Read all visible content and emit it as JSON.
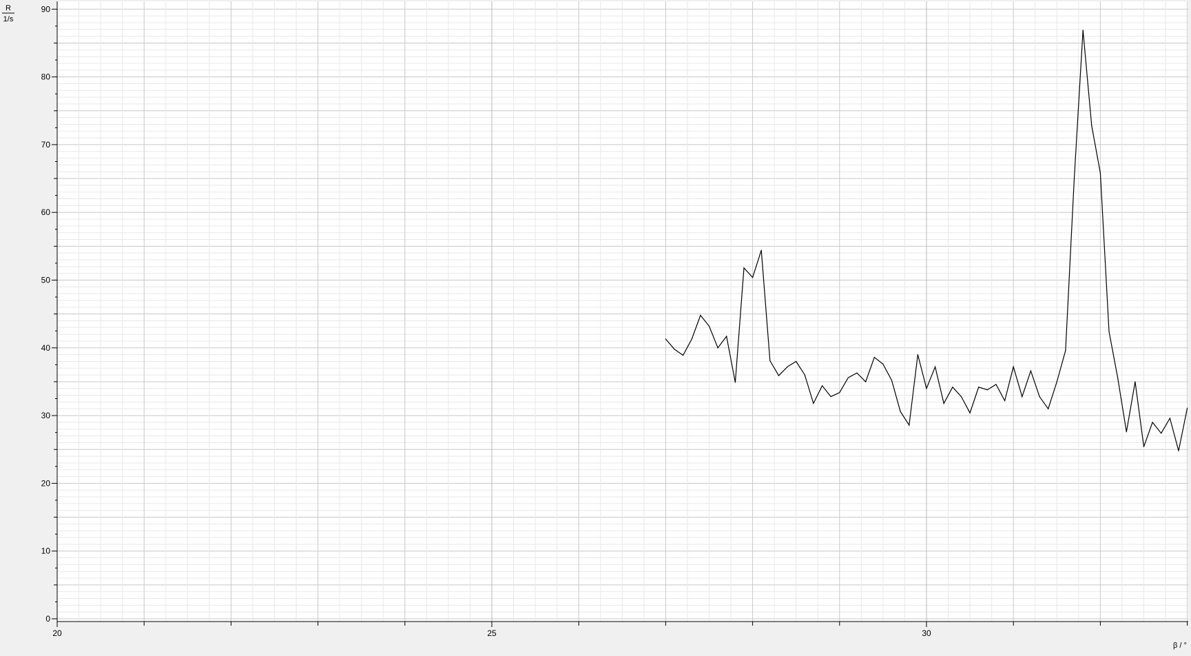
{
  "chart_data": {
    "type": "line",
    "ylabel_numerator": "R",
    "ylabel_denominator": "1/s",
    "xlabel": "β / °",
    "xlim": [
      20,
      33
    ],
    "ylim": [
      0,
      90
    ],
    "grid": true,
    "x_ticks": [
      20,
      25,
      30
    ],
    "y_ticks": [
      0,
      10,
      20,
      30,
      40,
      50,
      60,
      70,
      80,
      90
    ],
    "colors": {
      "background": "#f0f0f0",
      "plot_background": "#ffffff",
      "line": "#000000",
      "major_grid": "#c8c8c8",
      "minor_grid": "#e8e8e8"
    },
    "series": [
      {
        "x": [
          27.0,
          27.1,
          27.2,
          27.3,
          27.4,
          27.5,
          27.6,
          27.7,
          27.8,
          27.9,
          28.0,
          28.1,
          28.2,
          28.3,
          28.4,
          28.5,
          28.6,
          28.7,
          28.8,
          28.9,
          29.0,
          29.1,
          29.2,
          29.3,
          29.4,
          29.5,
          29.6,
          29.7,
          29.8,
          29.9,
          30.0,
          30.1,
          30.2,
          30.3,
          30.4,
          30.5,
          30.6,
          30.7,
          30.8,
          30.9,
          31.0,
          31.1,
          31.2,
          31.3,
          31.4,
          31.5,
          31.6,
          31.7,
          31.8,
          31.9,
          32.0,
          32.1,
          32.2,
          32.3,
          32.4,
          32.5,
          32.6,
          32.7,
          32.8,
          32.9,
          33.0
        ],
        "y": [
          41.3,
          39.8,
          38.9,
          41.3,
          44.8,
          43.2,
          40.0,
          41.7,
          34.9,
          51.8,
          50.4,
          54.4,
          38.1,
          35.9,
          37.2,
          38.0,
          36.0,
          31.8,
          34.4,
          32.8,
          33.4,
          35.6,
          36.3,
          35.0,
          38.6,
          37.6,
          35.2,
          30.6,
          28.6,
          39.0,
          34.0,
          37.2,
          31.8,
          34.2,
          32.8,
          30.4,
          34.2,
          33.8,
          34.6,
          32.2,
          37.2,
          32.8,
          36.6,
          32.8,
          31.0,
          35.0,
          39.6,
          65.0,
          86.9,
          72.8,
          65.8,
          42.4,
          35.6,
          27.6,
          35.0,
          25.4,
          29.0,
          27.4,
          29.6,
          24.8,
          31.1
        ]
      }
    ]
  }
}
